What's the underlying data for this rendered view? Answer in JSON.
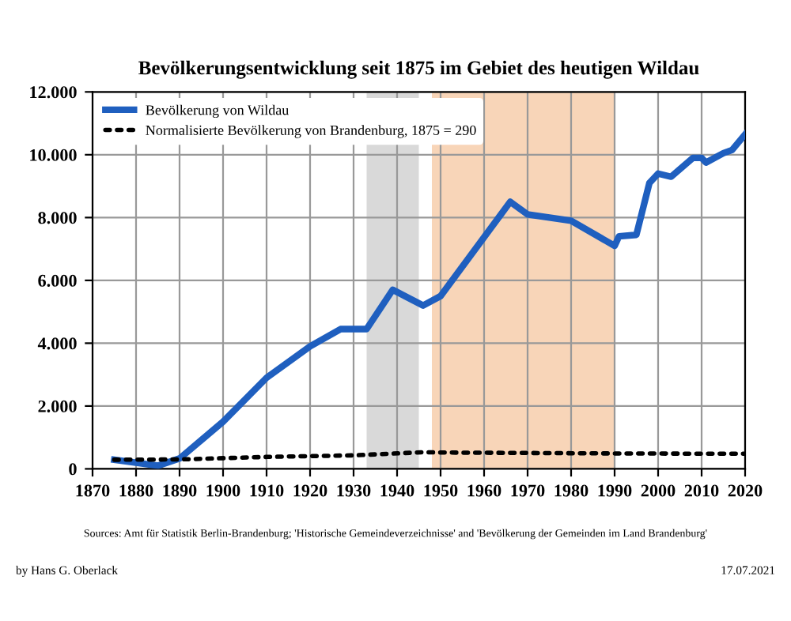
{
  "chart_data": {
    "type": "line",
    "title": "Bevölkerungsentwicklung seit 1875 im Gebiet des heutigen Wildau",
    "xlim": [
      1870,
      2020
    ],
    "xticks": [
      1870,
      1880,
      1890,
      1900,
      1910,
      1920,
      1930,
      1940,
      1950,
      1960,
      1970,
      1980,
      1990,
      2000,
      2010,
      2020
    ],
    "ylim": [
      0,
      12000
    ],
    "yticks": [
      0,
      {
        "value": 2000,
        "label": "2.000"
      },
      {
        "value": 4000,
        "label": "4.000"
      },
      {
        "value": 6000,
        "label": "6.000"
      },
      {
        "value": 8000,
        "label": "8.000"
      },
      {
        "value": 10000,
        "label": "10.000"
      },
      {
        "value": 12000,
        "label": "12.000"
      }
    ],
    "grid": true,
    "legend": "top left",
    "series": [
      {
        "name": "Bevölkerung von Wildau",
        "color": "#1f5fbf",
        "line_style": "solid",
        "x": [
          1875,
          1885,
          1890,
          1900,
          1910,
          1920,
          1927,
          1933,
          1939,
          1946,
          1950,
          1966,
          1970,
          1980,
          1990,
          1991,
          1995,
          1998,
          2000,
          2003,
          2008,
          2010,
          2011,
          2015,
          2017,
          2020
        ],
        "values": [
          290,
          100,
          330,
          1500,
          2900,
          3900,
          4450,
          4450,
          5700,
          5200,
          5500,
          8500,
          8100,
          7900,
          7100,
          7400,
          7450,
          9100,
          9400,
          9300,
          9900,
          9900,
          9750,
          10050,
          10150,
          10650
        ]
      },
      {
        "name": "Normalisierte Bevölkerung von Brandenburg, 1875 = 290",
        "color": "#000000",
        "line_style": "dotted",
        "x": [
          1875,
          1890,
          1910,
          1930,
          1946,
          1950,
          1990,
          2020
        ],
        "values": [
          290,
          300,
          380,
          430,
          530,
          520,
          490,
          480
        ]
      }
    ],
    "bands": [
      {
        "axis": "x",
        "from": 1933,
        "to": 1945,
        "color": "#d9d9d9"
      },
      {
        "axis": "x",
        "from": 1948,
        "to": 1990,
        "color": "#f8d5b8"
      }
    ],
    "annotations": [
      "by Hans G. Oberlack",
      "Sources: Amt für Statistik Berlin-Brandenburg; 'Historische Gemeindeverzeichnisse' and 'Bevölkerung der Gemeinden im Land Brandenburg'",
      "17.07.2021"
    ]
  }
}
